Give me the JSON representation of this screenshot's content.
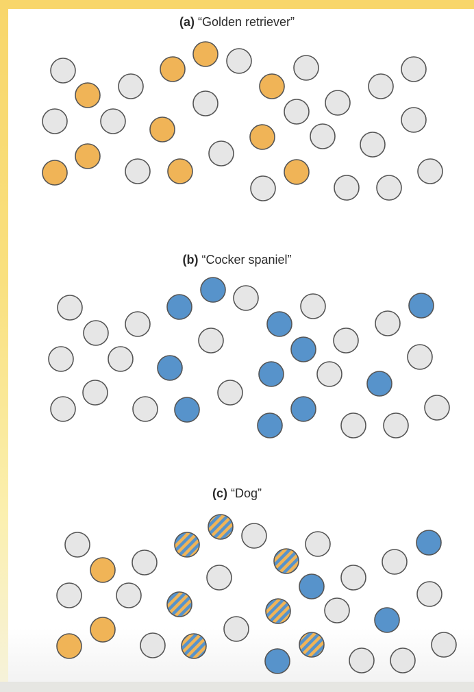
{
  "panels": [
    {
      "label": "(a)",
      "title": "“Golden retriever”"
    },
    {
      "label": "(b)",
      "title": "“Cocker spaniel”"
    },
    {
      "label": "(c)",
      "title": "“Dog”"
    }
  ],
  "colors": {
    "inactive": "#e6e6e6",
    "golden_retriever": "#f0b457",
    "cocker_spaniel": "#5793cb",
    "outline": "#555555",
    "border": "#f8d66a"
  }
}
